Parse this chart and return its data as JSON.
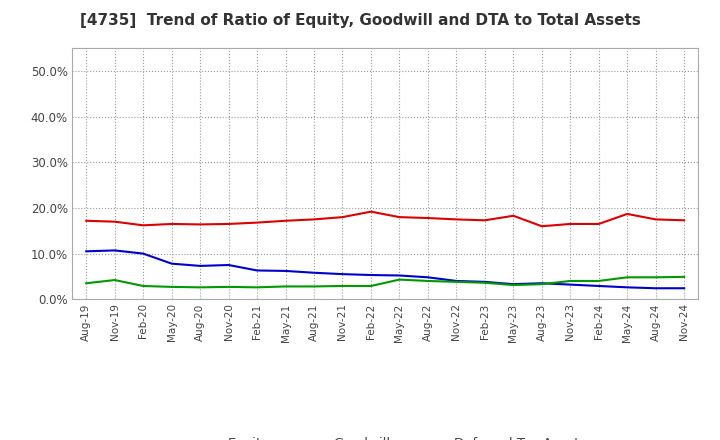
{
  "title": "[4735]  Trend of Ratio of Equity, Goodwill and DTA to Total Assets",
  "x_labels": [
    "Aug-19",
    "Nov-19",
    "Feb-20",
    "May-20",
    "Aug-20",
    "Nov-20",
    "Feb-21",
    "May-21",
    "Aug-21",
    "Nov-21",
    "Feb-22",
    "May-22",
    "Aug-22",
    "Nov-22",
    "Feb-23",
    "May-23",
    "Aug-23",
    "Nov-23",
    "Feb-24",
    "May-24",
    "Aug-24",
    "Nov-24"
  ],
  "equity": [
    17.2,
    17.0,
    16.2,
    16.5,
    16.4,
    16.5,
    16.8,
    17.2,
    17.5,
    18.0,
    19.2,
    18.0,
    17.8,
    17.5,
    17.3,
    18.3,
    16.0,
    16.5,
    16.5,
    18.7,
    17.5,
    17.3
  ],
  "goodwill": [
    10.5,
    10.7,
    10.0,
    7.8,
    7.3,
    7.5,
    6.3,
    6.2,
    5.8,
    5.5,
    5.3,
    5.2,
    4.8,
    4.0,
    3.8,
    3.3,
    3.5,
    3.2,
    2.9,
    2.6,
    2.4,
    2.4
  ],
  "dta": [
    3.5,
    4.2,
    2.9,
    2.7,
    2.6,
    2.7,
    2.6,
    2.8,
    2.8,
    2.9,
    2.9,
    4.3,
    4.0,
    3.8,
    3.6,
    3.1,
    3.3,
    4.0,
    4.0,
    4.8,
    4.8,
    4.9
  ],
  "equity_color": "#dd0000",
  "goodwill_color": "#0000cc",
  "dta_color": "#009900",
  "ylim": [
    0,
    55
  ],
  "yticks": [
    0.0,
    10.0,
    20.0,
    30.0,
    40.0,
    50.0
  ],
  "background_color": "#ffffff",
  "plot_bg_color": "#ffffff",
  "grid_color": "#999999"
}
